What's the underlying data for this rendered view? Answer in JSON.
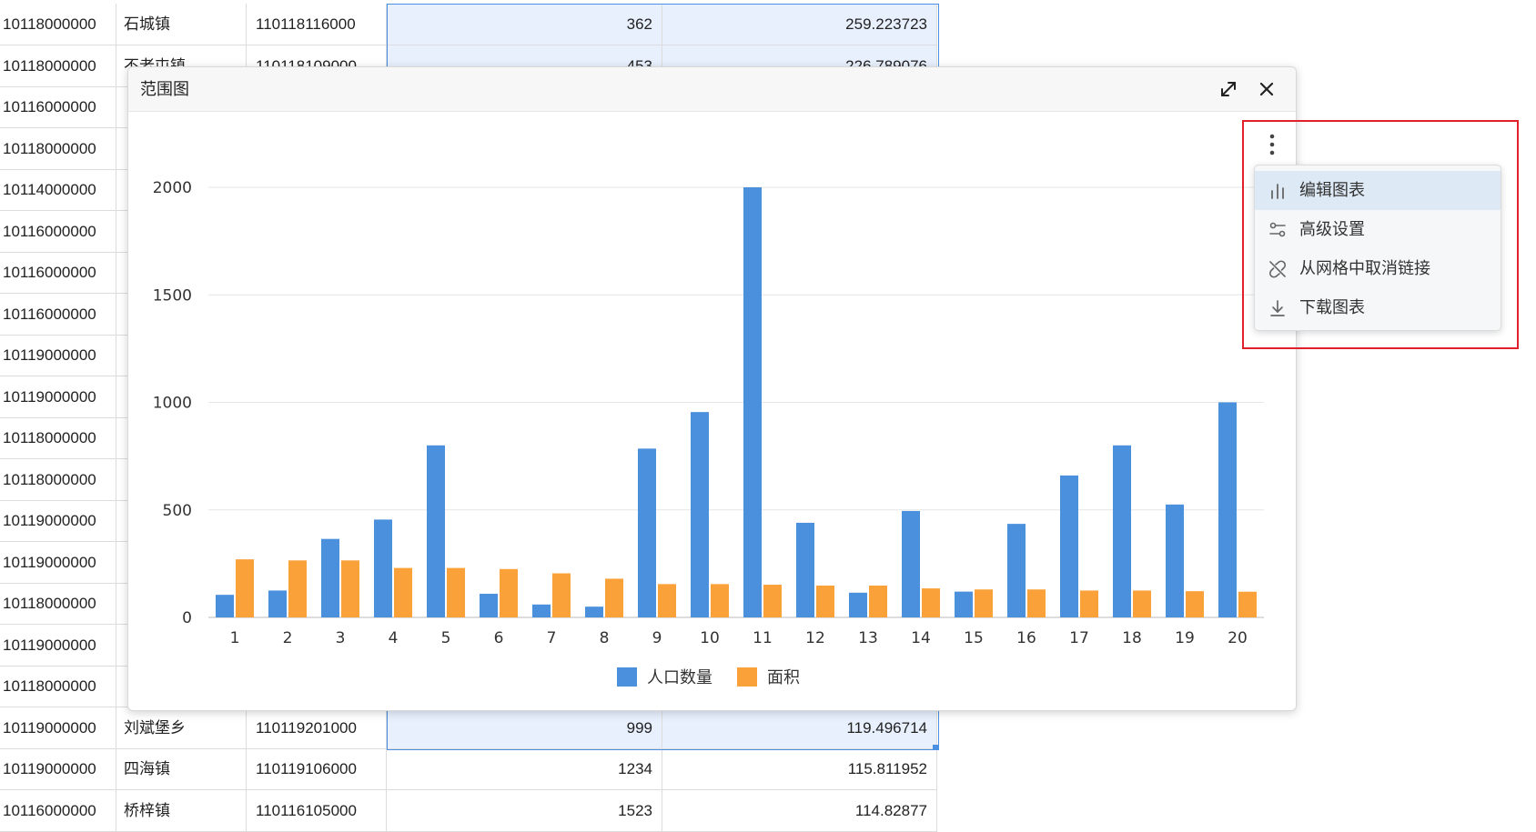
{
  "grid": {
    "rows": [
      {
        "c0": "10118000000",
        "c1": "石城镇",
        "c2": "110118116000",
        "c3": "362",
        "c4": "259.223723"
      },
      {
        "c0": "10118000000",
        "c1": "不老屯镇",
        "c2": "110118109000",
        "c3": "453",
        "c4": "226.789076"
      },
      {
        "c0": "10116000000",
        "c1": "",
        "c2": "",
        "c3": "",
        "c4": ""
      },
      {
        "c0": "10118000000",
        "c1": "",
        "c2": "",
        "c3": "",
        "c4": ""
      },
      {
        "c0": "10114000000",
        "c1": "",
        "c2": "",
        "c3": "",
        "c4": ""
      },
      {
        "c0": "10116000000",
        "c1": "",
        "c2": "",
        "c3": "",
        "c4": ""
      },
      {
        "c0": "10116000000",
        "c1": "",
        "c2": "",
        "c3": "",
        "c4": ""
      },
      {
        "c0": "10116000000",
        "c1": "",
        "c2": "",
        "c3": "",
        "c4": ""
      },
      {
        "c0": "10119000000",
        "c1": "",
        "c2": "",
        "c3": "",
        "c4": ""
      },
      {
        "c0": "10119000000",
        "c1": "",
        "c2": "",
        "c3": "",
        "c4": ""
      },
      {
        "c0": "10118000000",
        "c1": "",
        "c2": "",
        "c3": "",
        "c4": ""
      },
      {
        "c0": "10118000000",
        "c1": "",
        "c2": "",
        "c3": "",
        "c4": ""
      },
      {
        "c0": "10119000000",
        "c1": "",
        "c2": "",
        "c3": "",
        "c4": ""
      },
      {
        "c0": "10119000000",
        "c1": "",
        "c2": "",
        "c3": "",
        "c4": ""
      },
      {
        "c0": "10118000000",
        "c1": "",
        "c2": "",
        "c3": "",
        "c4": ""
      },
      {
        "c0": "10119000000",
        "c1": "",
        "c2": "",
        "c3": "",
        "c4": ""
      },
      {
        "c0": "10118000000",
        "c1": "",
        "c2": "",
        "c3": "",
        "c4": ""
      },
      {
        "c0": "10119000000",
        "c1": "刘斌堡乡",
        "c2": "110119201000",
        "c3": "999",
        "c4": "119.496714"
      },
      {
        "c0": "10119000000",
        "c1": "四海镇",
        "c2": "110119106000",
        "c3": "1234",
        "c4": "115.811952"
      },
      {
        "c0": "10116000000",
        "c1": "桥梓镇",
        "c2": "110116105000",
        "c3": "1523",
        "c4": "114.82877"
      }
    ]
  },
  "dialog": {
    "title": "范围图",
    "expand_icon": "expand-icon",
    "close_icon": "close-icon"
  },
  "menu": {
    "trigger_icon": "more-vertical-icon",
    "items": [
      {
        "label": "编辑图表",
        "icon": "bar-chart-icon"
      },
      {
        "label": "高级设置",
        "icon": "sliders-icon"
      },
      {
        "label": "从网格中取消链接",
        "icon": "unlink-icon"
      },
      {
        "label": "下载图表",
        "icon": "download-icon"
      }
    ]
  },
  "colors": {
    "series1": "#4a90dd",
    "series2": "#fba13a",
    "accent": "#4a90e2",
    "highlight": "#e0202a"
  },
  "chart_data": {
    "type": "bar",
    "title": "",
    "xlabel": "",
    "ylabel": "",
    "categories": [
      "1",
      "2",
      "3",
      "4",
      "5",
      "6",
      "7",
      "8",
      "9",
      "10",
      "11",
      "12",
      "13",
      "14",
      "15",
      "16",
      "17",
      "18",
      "19",
      "20"
    ],
    "series": [
      {
        "name": "人口数量",
        "values": [
          105,
          125,
          365,
          455,
          800,
          110,
          60,
          50,
          785,
          955,
          2000,
          440,
          115,
          495,
          120,
          435,
          660,
          800,
          525,
          1000
        ]
      },
      {
        "name": "面积",
        "values": [
          270,
          265,
          265,
          230,
          230,
          225,
          205,
          180,
          155,
          155,
          152,
          148,
          148,
          135,
          130,
          130,
          125,
          125,
          122,
          119.5
        ]
      }
    ],
    "ylim": [
      0,
      2000
    ],
    "yticks": [
      0,
      500,
      1000,
      1500,
      2000
    ],
    "grid": true,
    "legend": "bottom"
  }
}
